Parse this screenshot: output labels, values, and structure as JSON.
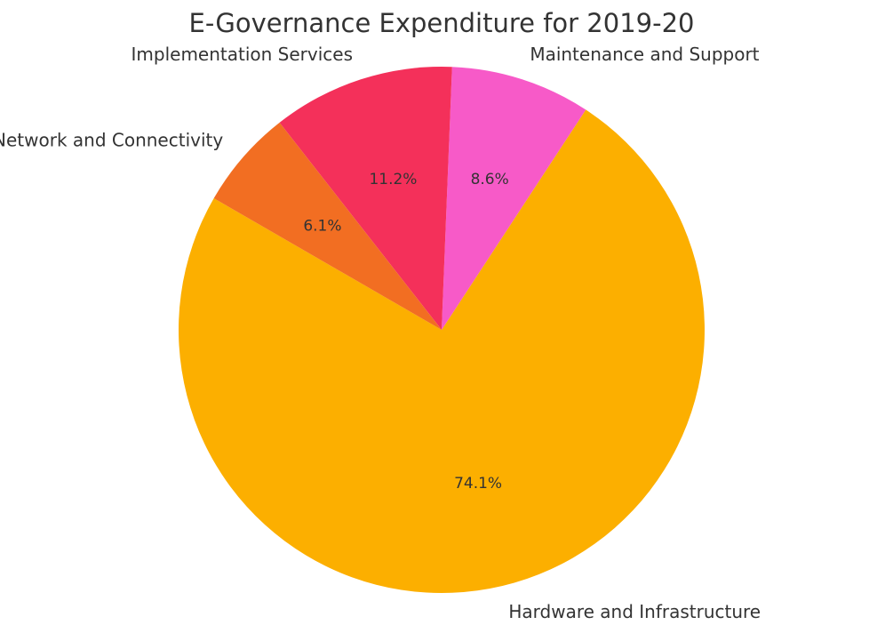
{
  "chart_data": {
    "type": "pie",
    "title": "E-Governance Expenditure for 2019-20",
    "slices": [
      {
        "label": "Hardware and Infrastructure",
        "value": 74.1,
        "pct_label": "74.1%",
        "color": "#FCAF00"
      },
      {
        "label": "Maintenance and Support",
        "value": 8.6,
        "pct_label": "8.6%",
        "color": "#F75AC8"
      },
      {
        "label": "Implementation Services",
        "value": 11.2,
        "pct_label": "11.2%",
        "color": "#F4305A"
      },
      {
        "label": "Network and Connectivity",
        "value": 6.1,
        "pct_label": "6.1%",
        "color": "#F26E22"
      }
    ]
  }
}
